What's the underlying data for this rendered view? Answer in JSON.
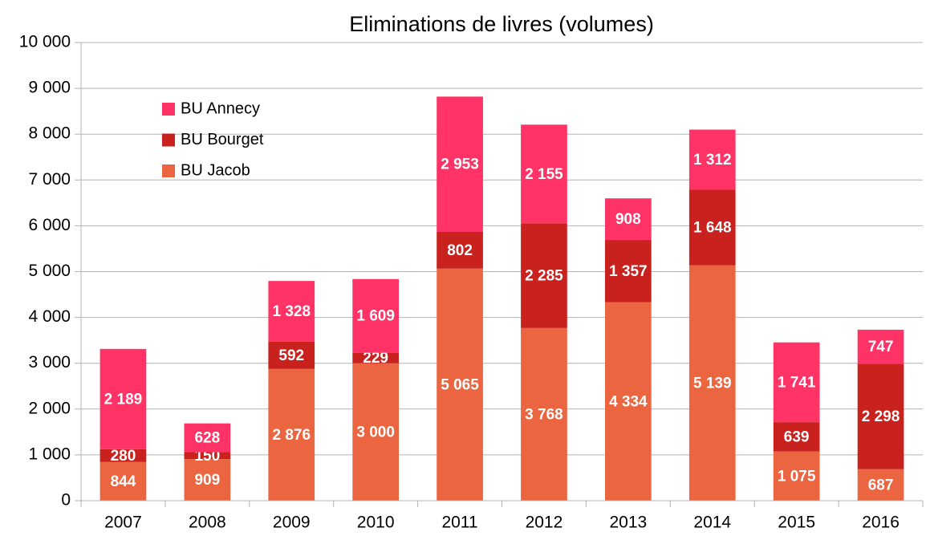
{
  "chart_data": {
    "type": "bar",
    "stacked": true,
    "title": "Eliminations de livres (volumes)",
    "categories": [
      "2007",
      "2008",
      "2009",
      "2010",
      "2011",
      "2012",
      "2013",
      "2014",
      "2015",
      "2016"
    ],
    "series": [
      {
        "name": "BU Jacob",
        "color": "#ea6540",
        "values": [
          844,
          909,
          2876,
          3000,
          5065,
          3768,
          4334,
          5139,
          1075,
          687
        ],
        "value_labels": [
          "844",
          "909",
          "2 876",
          "3 000",
          "5 065",
          "3 768",
          "4 334",
          "5 139",
          "1 075",
          "687"
        ]
      },
      {
        "name": "BU Bourget",
        "color": "#c9211e",
        "values": [
          280,
          150,
          592,
          229,
          802,
          2285,
          1357,
          1648,
          639,
          2298
        ],
        "value_labels": [
          "280",
          "150",
          "592",
          "229",
          "802",
          "2 285",
          "1 357",
          "1 648",
          "639",
          "2 298"
        ]
      },
      {
        "name": "BU Annecy",
        "color": "#ff3366",
        "values": [
          2189,
          628,
          1328,
          1609,
          2953,
          2155,
          908,
          1312,
          1741,
          747
        ],
        "value_labels": [
          "2 189",
          "628",
          "1 328",
          "1 609",
          "2 953",
          "2 155",
          "908",
          "1 312",
          "1 741",
          "747"
        ]
      }
    ],
    "ylim": [
      0,
      10000
    ],
    "yticks": [
      0,
      {
        "value": 1000,
        "label": "1 000"
      },
      {
        "value": 2000,
        "label": "2 000"
      },
      {
        "value": 3000,
        "label": "3 000"
      },
      {
        "value": 4000,
        "label": "4 000"
      },
      {
        "value": 5000,
        "label": "5 000"
      },
      {
        "value": 6000,
        "label": "6 000"
      },
      {
        "value": 7000,
        "label": "7 000"
      },
      {
        "value": 8000,
        "label": "8 000"
      },
      {
        "value": 9000,
        "label": "9 000"
      },
      {
        "value": 10000,
        "label": "10 000"
      }
    ],
    "grid": true,
    "legend": "top-left"
  }
}
